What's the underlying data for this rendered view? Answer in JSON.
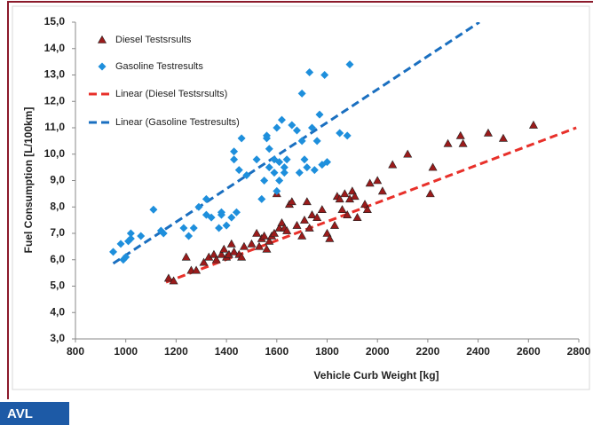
{
  "brand": "AVL",
  "chart_data": {
    "type": "scatter",
    "xlabel": "Vehicle Curb Weight [kg]",
    "ylabel": "Fuel Consumption [L/100km]",
    "xlim": [
      800,
      2800
    ],
    "xticks": [
      800,
      1000,
      1200,
      1400,
      1600,
      1800,
      2000,
      2200,
      2400,
      2600,
      2800
    ],
    "ylim": [
      3,
      15
    ],
    "yticks": [
      {
        "value": 3,
        "label": "3,0"
      },
      {
        "value": 4,
        "label": "4,0"
      },
      {
        "value": 5,
        "label": "5,0"
      },
      {
        "value": 6,
        "label": "6,0"
      },
      {
        "value": 7,
        "label": "7,0"
      },
      {
        "value": 8,
        "label": "8,0"
      },
      {
        "value": 9,
        "label": "9,0"
      },
      {
        "value": 10,
        "label": "10,0"
      },
      {
        "value": 11,
        "label": "11,0"
      },
      {
        "value": 12,
        "label": "12,0"
      },
      {
        "value": 13,
        "label": "13,0"
      },
      {
        "value": 14,
        "label": "14,0"
      },
      {
        "value": 15,
        "label": "15,0"
      }
    ],
    "grid": false,
    "legend": "upper left",
    "series": [
      {
        "name": "Diesel Testsrsults",
        "color": "#9b1b1b",
        "marker": "triangle",
        "x": [
          1170,
          1190,
          1240,
          1260,
          1280,
          1310,
          1330,
          1350,
          1360,
          1380,
          1390,
          1400,
          1410,
          1420,
          1430,
          1450,
          1460,
          1470,
          1500,
          1520,
          1530,
          1540,
          1550,
          1560,
          1570,
          1580,
          1590,
          1600,
          1610,
          1620,
          1630,
          1640,
          1650,
          1660,
          1680,
          1700,
          1710,
          1720,
          1730,
          1740,
          1760,
          1780,
          1800,
          1810,
          1830,
          1840,
          1850,
          1860,
          1870,
          1880,
          1890,
          1900,
          1910,
          1920,
          1950,
          1960,
          1970,
          2000,
          2020,
          2060,
          2120,
          2210,
          2220,
          2280,
          2330,
          2340,
          2440,
          2500,
          2620
        ],
        "values": [
          5.3,
          5.2,
          6.1,
          5.6,
          5.6,
          5.9,
          6.1,
          6.2,
          6.0,
          6.2,
          6.4,
          6.1,
          6.2,
          6.6,
          6.3,
          6.2,
          6.1,
          6.5,
          6.6,
          7.0,
          6.5,
          6.8,
          6.9,
          6.4,
          6.7,
          6.9,
          7.0,
          8.5,
          7.2,
          7.4,
          7.2,
          7.1,
          8.1,
          8.2,
          7.3,
          6.9,
          7.5,
          8.2,
          7.2,
          7.7,
          7.6,
          7.9,
          7.0,
          6.8,
          7.3,
          8.4,
          8.3,
          7.9,
          8.5,
          7.7,
          8.3,
          8.6,
          8.4,
          7.6,
          8.1,
          7.9,
          8.9,
          9.0,
          8.6,
          9.6,
          10.0,
          8.5,
          9.5,
          10.4,
          10.7,
          10.4,
          10.8,
          10.6,
          11.1
        ]
      },
      {
        "name": "Gasoline Testresults",
        "color": "#1e8fdc",
        "marker": "diamond",
        "x": [
          950,
          980,
          990,
          1000,
          1010,
          1020,
          1020,
          1060,
          1110,
          1140,
          1150,
          1230,
          1250,
          1270,
          1290,
          1320,
          1320,
          1340,
          1370,
          1380,
          1380,
          1400,
          1420,
          1430,
          1430,
          1440,
          1450,
          1460,
          1480,
          1520,
          1540,
          1550,
          1560,
          1560,
          1570,
          1570,
          1590,
          1590,
          1600,
          1600,
          1610,
          1610,
          1620,
          1630,
          1630,
          1640,
          1660,
          1680,
          1690,
          1700,
          1700,
          1710,
          1720,
          1730,
          1740,
          1750,
          1760,
          1770,
          1780,
          1790,
          1800,
          1850,
          1880,
          1890
        ],
        "values": [
          6.3,
          6.6,
          6.0,
          6.1,
          6.7,
          7.0,
          6.8,
          6.9,
          7.9,
          7.1,
          7.0,
          7.2,
          6.9,
          7.2,
          8.0,
          7.7,
          8.3,
          7.6,
          7.2,
          7.7,
          7.8,
          7.3,
          7.6,
          9.8,
          10.1,
          7.8,
          9.4,
          10.6,
          9.2,
          9.8,
          8.3,
          9.0,
          10.6,
          10.7,
          9.5,
          10.2,
          9.8,
          9.3,
          11.0,
          8.6,
          9.0,
          9.7,
          11.3,
          9.5,
          9.3,
          9.8,
          11.1,
          10.9,
          9.3,
          12.3,
          10.5,
          9.8,
          9.5,
          13.1,
          11.0,
          9.4,
          10.5,
          11.5,
          9.6,
          13.0,
          9.7,
          10.8,
          10.7,
          13.4
        ]
      }
    ],
    "trendlines": [
      {
        "name": "Linear (Diesel Testsrsults)",
        "color": "#e8302a",
        "x": [
          1160,
          2790
        ],
        "values": [
          5.15,
          11.0
        ]
      },
      {
        "name": "Linear (Gasoline Testresults)",
        "color": "#1a6fc0",
        "x": [
          950,
          2405
        ],
        "values": [
          5.86,
          15.0
        ]
      }
    ]
  }
}
